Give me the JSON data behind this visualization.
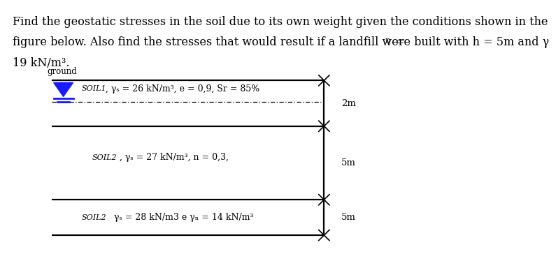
{
  "header_line1": "Find the geostatic stresses in the soil due to its own weight given the conditions shown in the",
  "header_line2": "figure below. Also find the stresses that would result if a landfill were built with h = 5m and γ",
  "header_subscript": "n",
  "header_line2_end": " =",
  "header_line3": "19 kN/m³.",
  "ground_label": "ground",
  "soil1_label": "SOIL1",
  "soil1_props": " , γₛ = 26 kN/m³, e = 0,9, Sr = 85%",
  "soil2a_label": "SOIL2",
  "soil2a_props": " , γₛ = 27 kN/m³, n = 0,3,",
  "soil2b_label": "SOIL2",
  "soil2b_props": "   γₛ = 28 kN/m3 e γₙ = 14 kN/m³",
  "dim1": "2m",
  "dim2": "5m",
  "dim3": "5m",
  "bg_color": "#ffffff",
  "text_color": "#000000",
  "line_color": "#000000",
  "dash_color": "#000000",
  "triangle_color": "#1a1aff",
  "tick_color": "#000000",
  "header_fontsize": 11.5,
  "label_fontsize": 8.0,
  "prop_fontsize": 9.0,
  "dim_fontsize": 9.5
}
